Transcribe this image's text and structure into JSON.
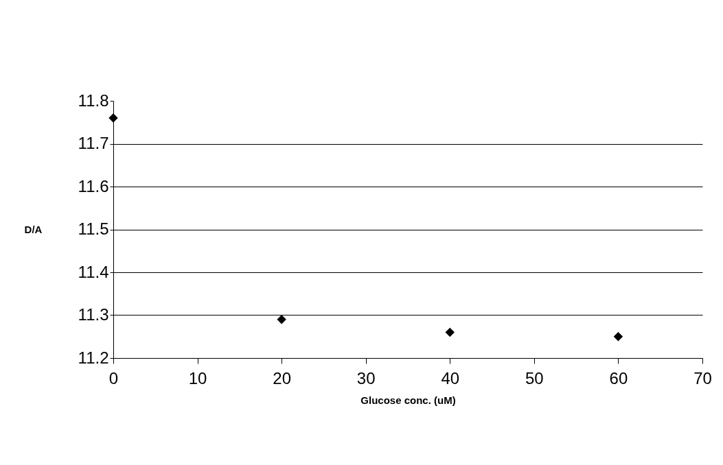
{
  "chart_data": {
    "type": "scatter",
    "xlabel": "Glucose conc. (uM)",
    "ylabel": "D/A",
    "x": [
      0,
      20,
      40,
      60
    ],
    "series": [
      {
        "color": "#000000",
        "values": [
          11.76,
          11.29,
          11.26,
          11.25
        ]
      }
    ],
    "xlim": [
      0,
      70
    ],
    "xticks": [
      0,
      10,
      20,
      30,
      40,
      50,
      60,
      70
    ],
    "ylim": [
      11.2,
      11.8
    ],
    "yticks": [
      11.2,
      11.3,
      11.4,
      11.5,
      11.6,
      11.7,
      11.8
    ],
    "grid": "y",
    "marker": "diamond"
  }
}
